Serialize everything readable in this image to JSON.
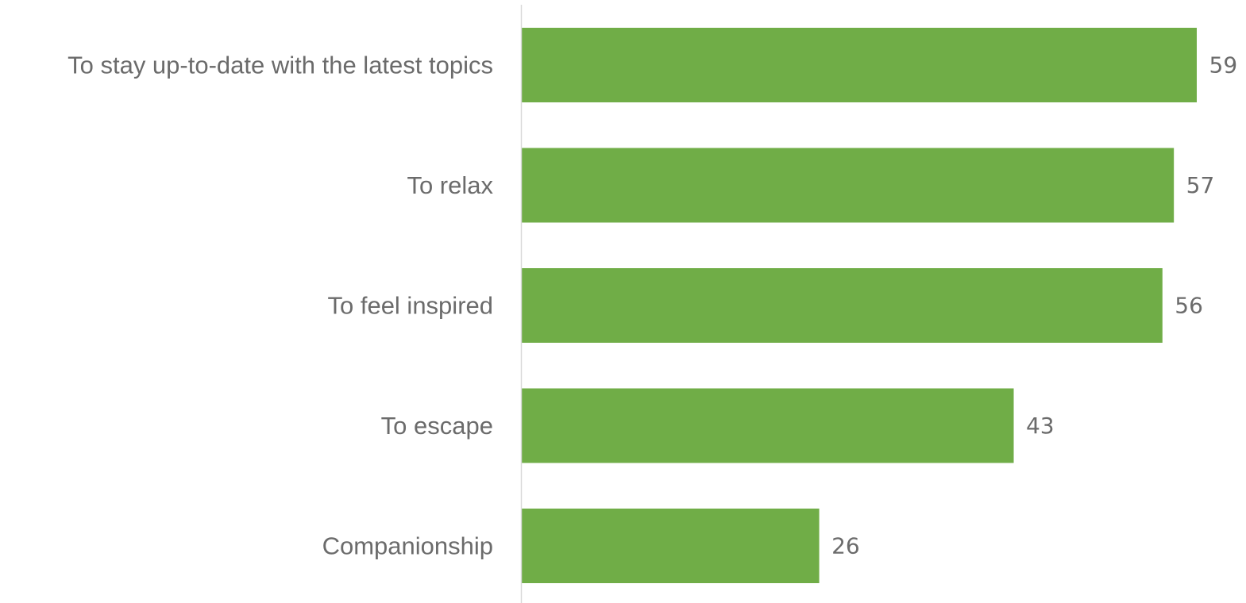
{
  "chart_data": {
    "type": "bar",
    "orientation": "horizontal",
    "categories": [
      "To stay up-to-date with the latest topics",
      "To relax",
      "To feel inspired",
      "To escape",
      "Companionship"
    ],
    "values": [
      59,
      57,
      56,
      43,
      26
    ],
    "data_labels": [
      "59",
      "57",
      "56",
      "43",
      "26"
    ],
    "title": "",
    "xlabel": "",
    "ylabel": "",
    "xlim": [
      0,
      59
    ],
    "grid": false,
    "legend": "none",
    "colors": {
      "bar": "#70ad47",
      "text": "#6b6b6b",
      "axis": "#d9d9d9"
    }
  }
}
